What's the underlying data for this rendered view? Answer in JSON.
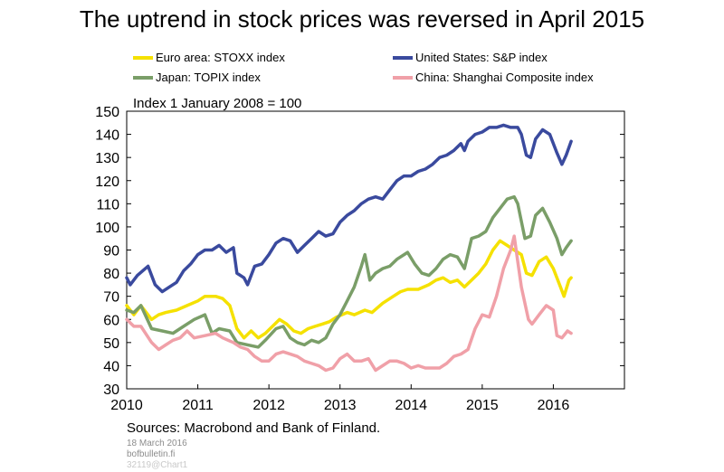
{
  "title": "The uptrend in stock prices was reversed in April 2015",
  "legend": {
    "euro": "Euro area: STOXX index",
    "us": "United States: S&P index",
    "japan": "Japan: TOPIX index",
    "china": "China: Shanghai Composite index"
  },
  "index_label": "Index 1 January 2008 = 100",
  "sources": "Sources: Macrobond and Bank of Finland.",
  "date": "18 March 2016",
  "site": "bofbulletin.fi",
  "chart_id": "32119@Chart1",
  "chart_data": {
    "type": "line",
    "ylim": [
      30,
      150
    ],
    "yticks": [
      30,
      40,
      50,
      60,
      70,
      80,
      90,
      100,
      110,
      120,
      130,
      140,
      150
    ],
    "xlim": [
      2010.0,
      2017.0
    ],
    "xticks": [
      "2010",
      "2011",
      "2012",
      "2013",
      "2014",
      "2015",
      "2016"
    ],
    "grid": false,
    "legend_position": "top",
    "series": [
      {
        "name": "Euro area: STOXX index",
        "color": "#f5e100",
        "points": [
          [
            2010.0,
            66
          ],
          [
            2010.1,
            62
          ],
          [
            2010.2,
            66
          ],
          [
            2010.35,
            60
          ],
          [
            2010.45,
            62
          ],
          [
            2010.55,
            63
          ],
          [
            2010.7,
            64
          ],
          [
            2010.85,
            66
          ],
          [
            2011.0,
            68
          ],
          [
            2011.1,
            70
          ],
          [
            2011.25,
            70
          ],
          [
            2011.35,
            69
          ],
          [
            2011.45,
            66
          ],
          [
            2011.55,
            56
          ],
          [
            2011.65,
            52
          ],
          [
            2011.75,
            55
          ],
          [
            2011.85,
            52
          ],
          [
            2011.95,
            54
          ],
          [
            2012.05,
            57
          ],
          [
            2012.15,
            60
          ],
          [
            2012.25,
            58
          ],
          [
            2012.35,
            55
          ],
          [
            2012.45,
            54
          ],
          [
            2012.55,
            56
          ],
          [
            2012.65,
            57
          ],
          [
            2012.75,
            58
          ],
          [
            2012.85,
            59
          ],
          [
            2012.95,
            61
          ],
          [
            2013.1,
            63
          ],
          [
            2013.2,
            62
          ],
          [
            2013.35,
            64
          ],
          [
            2013.45,
            63
          ],
          [
            2013.6,
            67
          ],
          [
            2013.75,
            70
          ],
          [
            2013.85,
            72
          ],
          [
            2013.95,
            73
          ],
          [
            2014.1,
            73
          ],
          [
            2014.25,
            75
          ],
          [
            2014.35,
            77
          ],
          [
            2014.45,
            78
          ],
          [
            2014.55,
            76
          ],
          [
            2014.65,
            77
          ],
          [
            2014.75,
            74
          ],
          [
            2014.85,
            77
          ],
          [
            2014.95,
            80
          ],
          [
            2015.05,
            84
          ],
          [
            2015.15,
            90
          ],
          [
            2015.25,
            94
          ],
          [
            2015.35,
            92
          ],
          [
            2015.45,
            90
          ],
          [
            2015.55,
            88
          ],
          [
            2015.62,
            80
          ],
          [
            2015.7,
            79
          ],
          [
            2015.8,
            85
          ],
          [
            2015.9,
            87
          ],
          [
            2016.0,
            82
          ],
          [
            2016.1,
            74
          ],
          [
            2016.15,
            70
          ],
          [
            2016.22,
            77
          ],
          [
            2016.25,
            78
          ]
        ]
      },
      {
        "name": "United States: S&P index",
        "color": "#3a4a9e",
        "points": [
          [
            2010.0,
            78
          ],
          [
            2010.05,
            75
          ],
          [
            2010.15,
            79
          ],
          [
            2010.3,
            83
          ],
          [
            2010.4,
            75
          ],
          [
            2010.5,
            72
          ],
          [
            2010.6,
            74
          ],
          [
            2010.7,
            76
          ],
          [
            2010.8,
            81
          ],
          [
            2010.9,
            84
          ],
          [
            2011.0,
            88
          ],
          [
            2011.1,
            90
          ],
          [
            2011.2,
            90
          ],
          [
            2011.3,
            92
          ],
          [
            2011.4,
            89
          ],
          [
            2011.5,
            91
          ],
          [
            2011.55,
            80
          ],
          [
            2011.65,
            78
          ],
          [
            2011.7,
            75
          ],
          [
            2011.8,
            83
          ],
          [
            2011.9,
            84
          ],
          [
            2012.0,
            88
          ],
          [
            2012.1,
            93
          ],
          [
            2012.2,
            95
          ],
          [
            2012.3,
            94
          ],
          [
            2012.4,
            89
          ],
          [
            2012.5,
            92
          ],
          [
            2012.6,
            95
          ],
          [
            2012.7,
            98
          ],
          [
            2012.8,
            96
          ],
          [
            2012.9,
            97
          ],
          [
            2013.0,
            102
          ],
          [
            2013.1,
            105
          ],
          [
            2013.2,
            107
          ],
          [
            2013.3,
            110
          ],
          [
            2013.4,
            112
          ],
          [
            2013.5,
            113
          ],
          [
            2013.6,
            112
          ],
          [
            2013.7,
            116
          ],
          [
            2013.8,
            120
          ],
          [
            2013.9,
            122
          ],
          [
            2014.0,
            122
          ],
          [
            2014.1,
            124
          ],
          [
            2014.2,
            125
          ],
          [
            2014.3,
            127
          ],
          [
            2014.4,
            130
          ],
          [
            2014.5,
            131
          ],
          [
            2014.6,
            133
          ],
          [
            2014.7,
            136
          ],
          [
            2014.75,
            133
          ],
          [
            2014.8,
            137
          ],
          [
            2014.9,
            140
          ],
          [
            2015.0,
            141
          ],
          [
            2015.1,
            143
          ],
          [
            2015.2,
            143
          ],
          [
            2015.3,
            144
          ],
          [
            2015.4,
            143
          ],
          [
            2015.5,
            143
          ],
          [
            2015.55,
            140
          ],
          [
            2015.62,
            131
          ],
          [
            2015.68,
            130
          ],
          [
            2015.75,
            138
          ],
          [
            2015.85,
            142
          ],
          [
            2015.95,
            140
          ],
          [
            2016.05,
            132
          ],
          [
            2016.12,
            127
          ],
          [
            2016.18,
            131
          ],
          [
            2016.25,
            137
          ]
        ]
      },
      {
        "name": "Japan: TOPIX index",
        "color": "#7a9e68",
        "points": [
          [
            2010.0,
            64
          ],
          [
            2010.1,
            63
          ],
          [
            2010.2,
            66
          ],
          [
            2010.35,
            56
          ],
          [
            2010.5,
            55
          ],
          [
            2010.65,
            54
          ],
          [
            2010.8,
            57
          ],
          [
            2010.95,
            60
          ],
          [
            2011.1,
            62
          ],
          [
            2011.2,
            54
          ],
          [
            2011.3,
            56
          ],
          [
            2011.45,
            55
          ],
          [
            2011.55,
            50
          ],
          [
            2011.7,
            49
          ],
          [
            2011.85,
            48
          ],
          [
            2011.95,
            51
          ],
          [
            2012.1,
            56
          ],
          [
            2012.2,
            57
          ],
          [
            2012.3,
            52
          ],
          [
            2012.4,
            50
          ],
          [
            2012.5,
            49
          ],
          [
            2012.6,
            51
          ],
          [
            2012.7,
            50
          ],
          [
            2012.8,
            52
          ],
          [
            2012.9,
            58
          ],
          [
            2013.0,
            62
          ],
          [
            2013.1,
            68
          ],
          [
            2013.2,
            74
          ],
          [
            2013.3,
            83
          ],
          [
            2013.35,
            88
          ],
          [
            2013.42,
            77
          ],
          [
            2013.5,
            80
          ],
          [
            2013.6,
            82
          ],
          [
            2013.7,
            83
          ],
          [
            2013.8,
            86
          ],
          [
            2013.95,
            89
          ],
          [
            2014.05,
            84
          ],
          [
            2014.15,
            80
          ],
          [
            2014.25,
            79
          ],
          [
            2014.35,
            82
          ],
          [
            2014.45,
            86
          ],
          [
            2014.55,
            88
          ],
          [
            2014.65,
            87
          ],
          [
            2014.75,
            82
          ],
          [
            2014.85,
            95
          ],
          [
            2014.95,
            96
          ],
          [
            2015.05,
            98
          ],
          [
            2015.15,
            104
          ],
          [
            2015.25,
            108
          ],
          [
            2015.35,
            112
          ],
          [
            2015.45,
            113
          ],
          [
            2015.5,
            110
          ],
          [
            2015.6,
            95
          ],
          [
            2015.68,
            96
          ],
          [
            2015.75,
            105
          ],
          [
            2015.85,
            108
          ],
          [
            2015.95,
            102
          ],
          [
            2016.05,
            95
          ],
          [
            2016.12,
            88
          ],
          [
            2016.18,
            91
          ],
          [
            2016.25,
            94
          ]
        ]
      },
      {
        "name": "China: Shanghai Composite index",
        "color": "#f0a0a8",
        "points": [
          [
            2010.0,
            60
          ],
          [
            2010.1,
            57
          ],
          [
            2010.2,
            57
          ],
          [
            2010.35,
            50
          ],
          [
            2010.45,
            47
          ],
          [
            2010.55,
            49
          ],
          [
            2010.65,
            51
          ],
          [
            2010.75,
            52
          ],
          [
            2010.85,
            55
          ],
          [
            2010.95,
            52
          ],
          [
            2011.1,
            53
          ],
          [
            2011.25,
            54
          ],
          [
            2011.35,
            52
          ],
          [
            2011.5,
            50
          ],
          [
            2011.6,
            48
          ],
          [
            2011.7,
            47
          ],
          [
            2011.8,
            44
          ],
          [
            2011.9,
            42
          ],
          [
            2012.0,
            42
          ],
          [
            2012.1,
            45
          ],
          [
            2012.2,
            46
          ],
          [
            2012.3,
            45
          ],
          [
            2012.4,
            44
          ],
          [
            2012.5,
            42
          ],
          [
            2012.6,
            41
          ],
          [
            2012.7,
            40
          ],
          [
            2012.8,
            38
          ],
          [
            2012.9,
            39
          ],
          [
            2013.0,
            43
          ],
          [
            2013.1,
            45
          ],
          [
            2013.2,
            42
          ],
          [
            2013.3,
            42
          ],
          [
            2013.4,
            43
          ],
          [
            2013.5,
            38
          ],
          [
            2013.6,
            40
          ],
          [
            2013.7,
            42
          ],
          [
            2013.8,
            42
          ],
          [
            2013.9,
            41
          ],
          [
            2014.0,
            39
          ],
          [
            2014.1,
            40
          ],
          [
            2014.2,
            39
          ],
          [
            2014.3,
            39
          ],
          [
            2014.4,
            39
          ],
          [
            2014.5,
            41
          ],
          [
            2014.6,
            44
          ],
          [
            2014.7,
            45
          ],
          [
            2014.8,
            47
          ],
          [
            2014.9,
            56
          ],
          [
            2015.0,
            62
          ],
          [
            2015.1,
            61
          ],
          [
            2015.2,
            70
          ],
          [
            2015.3,
            82
          ],
          [
            2015.4,
            90
          ],
          [
            2015.45,
            96
          ],
          [
            2015.5,
            85
          ],
          [
            2015.55,
            74
          ],
          [
            2015.65,
            60
          ],
          [
            2015.7,
            58
          ],
          [
            2015.8,
            62
          ],
          [
            2015.9,
            66
          ],
          [
            2016.0,
            64
          ],
          [
            2016.05,
            53
          ],
          [
            2016.12,
            52
          ],
          [
            2016.2,
            55
          ],
          [
            2016.25,
            54
          ]
        ]
      }
    ]
  }
}
